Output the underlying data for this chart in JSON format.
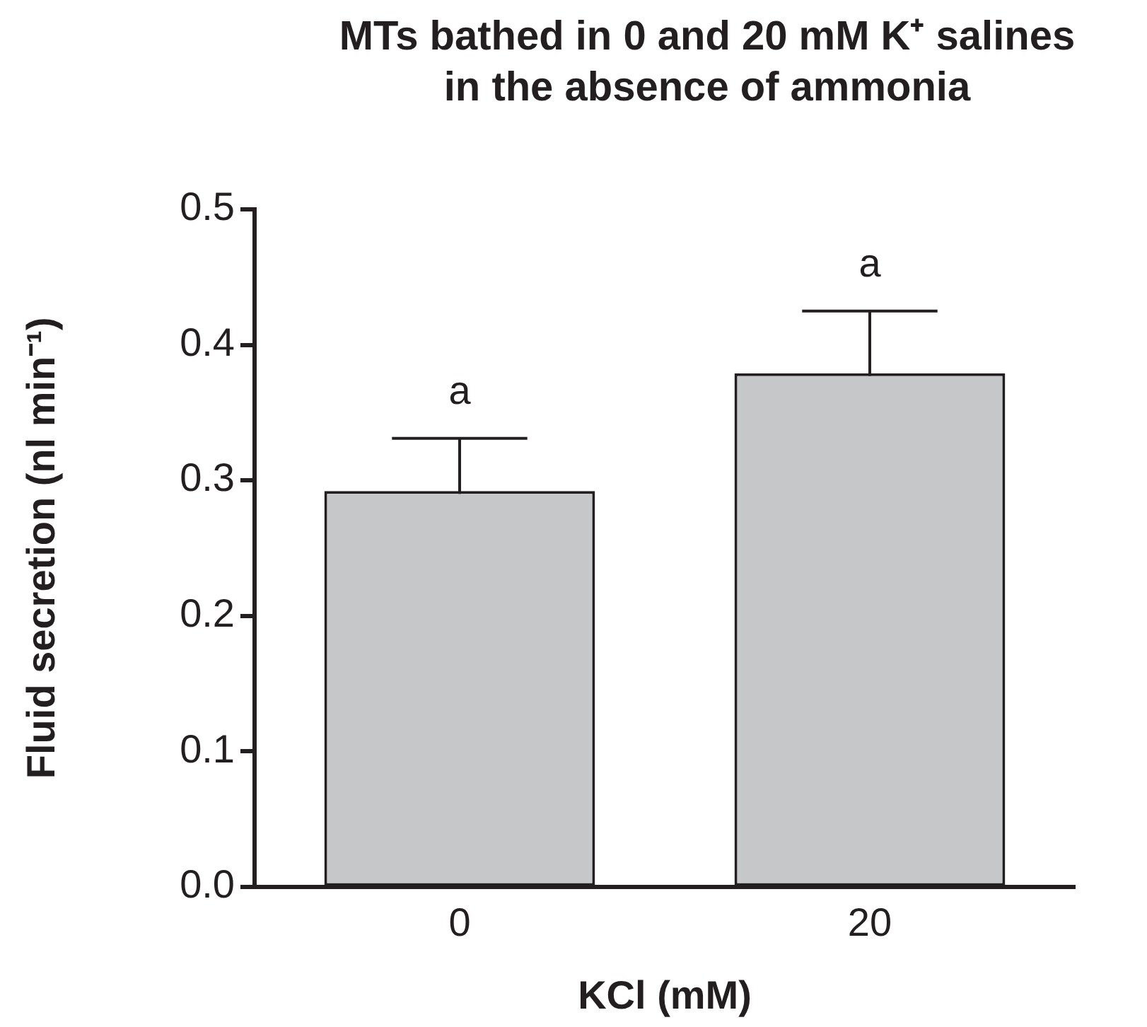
{
  "chart_data": {
    "type": "bar",
    "title": "MTs bathed in 0 and 20 mM K⁺ salines in the absence of ammonia",
    "xlabel": "KCl (mM)",
    "ylabel": "Fluid secretion (nl min⁻¹)",
    "categories": [
      "0",
      "20"
    ],
    "values": [
      0.292,
      0.379
    ],
    "errors": [
      0.039,
      0.046
    ],
    "color": "#c6c7c9",
    "ylim": [
      0,
      0.5
    ],
    "yticks": [
      {
        "value": 0,
        "label": "0.0"
      },
      0.1,
      0.2,
      0.3,
      0.4,
      0.5
    ],
    "grid": false,
    "legend": false,
    "annotations": [
      "a",
      "a"
    ]
  }
}
